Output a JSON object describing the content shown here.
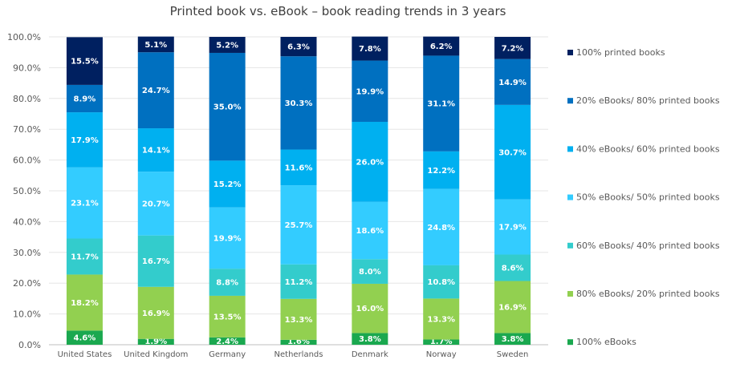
{
  "chart_data": {
    "type": "bar",
    "stacked": true,
    "title": "Printed book vs. eBook – book reading trends in 3 years",
    "xlabel": "",
    "ylabel": "",
    "ylim": [
      0,
      100
    ],
    "yticks": [
      "0.0%",
      "10.0%",
      "20.0%",
      "30.0%",
      "40.0%",
      "50.0%",
      "60.0%",
      "70.0%",
      "80.0%",
      "90.0%",
      "100.0%"
    ],
    "grid": true,
    "legend_position": "right",
    "categories": [
      "United States",
      "United Kingdom",
      "Germany",
      "Netherlands",
      "Denmark",
      "Norway",
      "Sweden"
    ],
    "series": [
      {
        "name": "100% eBooks",
        "color": "#1aa84f",
        "values": [
          4.6,
          1.9,
          2.4,
          1.6,
          3.8,
          1.7,
          3.8
        ]
      },
      {
        "name": "80% eBooks/ 20% printed books",
        "color": "#92d050",
        "values": [
          18.2,
          16.9,
          13.5,
          13.3,
          16.0,
          13.3,
          16.9
        ]
      },
      {
        "name": "60% eBooks/ 40% printed books",
        "color": "#33cccc",
        "values": [
          11.7,
          16.7,
          8.8,
          11.2,
          8.0,
          10.8,
          8.6
        ]
      },
      {
        "name": "50% eBooks/ 50% printed books",
        "color": "#33ccff",
        "values": [
          23.1,
          20.7,
          19.9,
          25.7,
          18.6,
          24.8,
          17.9
        ]
      },
      {
        "name": "40% eBooks/ 60% printed books",
        "color": "#00b0f0",
        "values": [
          17.9,
          14.1,
          15.2,
          11.6,
          26.0,
          12.2,
          30.7
        ]
      },
      {
        "name": "20% eBooks/ 80% printed books",
        "color": "#0070c0",
        "values": [
          8.9,
          24.7,
          35.0,
          30.3,
          19.9,
          31.1,
          14.9
        ]
      },
      {
        "name": "100% printed books",
        "color": "#002060",
        "values": [
          15.5,
          5.1,
          5.2,
          6.3,
          7.8,
          6.2,
          7.2
        ]
      }
    ]
  }
}
